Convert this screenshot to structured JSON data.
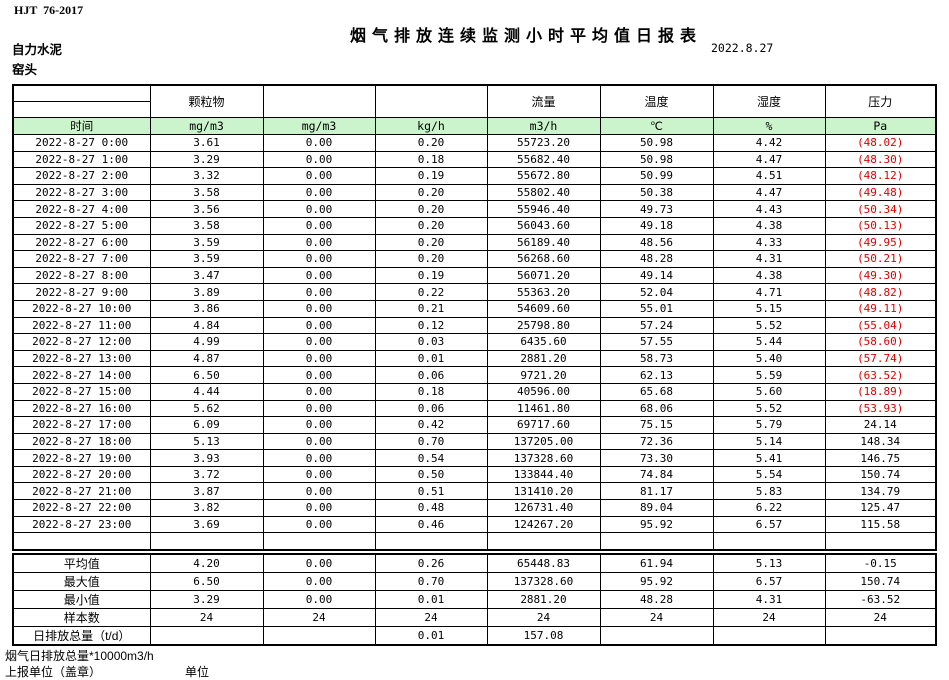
{
  "meta": {
    "standard": "HJT  76-2017",
    "title": "烟气排放连续监测小时平均值日报表",
    "date": "2022.8.27",
    "company": "自力水泥",
    "location": "窑头"
  },
  "colors": {
    "header_green": "#ccf4cc",
    "negative_red": "#e00000"
  },
  "table": {
    "groups": [
      "",
      "颗粒物",
      "",
      "",
      "流量",
      "温度",
      "湿度",
      "压力"
    ],
    "units": [
      "时间",
      "mg/m3",
      "mg/m3",
      "kg/h",
      "m3/h",
      "℃",
      "%",
      "Pa"
    ],
    "rows": [
      [
        "2022-8-27 0:00",
        "3.61",
        "0.00",
        "0.20",
        "55723.20",
        "50.98",
        "4.42",
        "(48.02)"
      ],
      [
        "2022-8-27 1:00",
        "3.29",
        "0.00",
        "0.18",
        "55682.40",
        "50.98",
        "4.47",
        "(48.30)"
      ],
      [
        "2022-8-27 2:00",
        "3.32",
        "0.00",
        "0.19",
        "55672.80",
        "50.99",
        "4.51",
        "(48.12)"
      ],
      [
        "2022-8-27 3:00",
        "3.58",
        "0.00",
        "0.20",
        "55802.40",
        "50.38",
        "4.47",
        "(49.48)"
      ],
      [
        "2022-8-27 4:00",
        "3.56",
        "0.00",
        "0.20",
        "55946.40",
        "49.73",
        "4.43",
        "(50.34)"
      ],
      [
        "2022-8-27 5:00",
        "3.58",
        "0.00",
        "0.20",
        "56043.60",
        "49.18",
        "4.38",
        "(50.13)"
      ],
      [
        "2022-8-27 6:00",
        "3.59",
        "0.00",
        "0.20",
        "56189.40",
        "48.56",
        "4.33",
        "(49.95)"
      ],
      [
        "2022-8-27 7:00",
        "3.59",
        "0.00",
        "0.20",
        "56268.60",
        "48.28",
        "4.31",
        "(50.21)"
      ],
      [
        "2022-8-27 8:00",
        "3.47",
        "0.00",
        "0.19",
        "56071.20",
        "49.14",
        "4.38",
        "(49.30)"
      ],
      [
        "2022-8-27 9:00",
        "3.89",
        "0.00",
        "0.22",
        "55363.20",
        "52.04",
        "4.71",
        "(48.82)"
      ],
      [
        "2022-8-27 10:00",
        "3.86",
        "0.00",
        "0.21",
        "54609.60",
        "55.01",
        "5.15",
        "(49.11)"
      ],
      [
        "2022-8-27 11:00",
        "4.84",
        "0.00",
        "0.12",
        "25798.80",
        "57.24",
        "5.52",
        "(55.04)"
      ],
      [
        "2022-8-27 12:00",
        "4.99",
        "0.00",
        "0.03",
        "6435.60",
        "57.55",
        "5.44",
        "(58.60)"
      ],
      [
        "2022-8-27 13:00",
        "4.87",
        "0.00",
        "0.01",
        "2881.20",
        "58.73",
        "5.40",
        "(57.74)"
      ],
      [
        "2022-8-27 14:00",
        "6.50",
        "0.00",
        "0.06",
        "9721.20",
        "62.13",
        "5.59",
        "(63.52)"
      ],
      [
        "2022-8-27 15:00",
        "4.44",
        "0.00",
        "0.18",
        "40596.00",
        "65.68",
        "5.60",
        "(18.89)"
      ],
      [
        "2022-8-27 16:00",
        "5.62",
        "0.00",
        "0.06",
        "11461.80",
        "68.06",
        "5.52",
        "(53.93)"
      ],
      [
        "2022-8-27 17:00",
        "6.09",
        "0.00",
        "0.42",
        "69717.60",
        "75.15",
        "5.79",
        "24.14"
      ],
      [
        "2022-8-27 18:00",
        "5.13",
        "0.00",
        "0.70",
        "137205.00",
        "72.36",
        "5.14",
        "148.34"
      ],
      [
        "2022-8-27 19:00",
        "3.93",
        "0.00",
        "0.54",
        "137328.60",
        "73.30",
        "5.41",
        "146.75"
      ],
      [
        "2022-8-27 20:00",
        "3.72",
        "0.00",
        "0.50",
        "133844.40",
        "74.84",
        "5.54",
        "150.74"
      ],
      [
        "2022-8-27 21:00",
        "3.87",
        "0.00",
        "0.51",
        "131410.20",
        "81.17",
        "5.83",
        "134.79"
      ],
      [
        "2022-8-27 22:00",
        "3.82",
        "0.00",
        "0.48",
        "126731.40",
        "89.04",
        "6.22",
        "125.47"
      ],
      [
        "2022-8-27 23:00",
        "3.69",
        "0.00",
        "0.46",
        "124267.20",
        "95.92",
        "6.57",
        "115.58"
      ]
    ],
    "summary": [
      [
        "平均值",
        "4.20",
        "0.00",
        "0.26",
        "65448.83",
        "61.94",
        "5.13",
        "-0.15"
      ],
      [
        "最大值",
        "6.50",
        "0.00",
        "0.70",
        "137328.60",
        "95.92",
        "6.57",
        "150.74"
      ],
      [
        "最小值",
        "3.29",
        "0.00",
        "0.01",
        "2881.20",
        "48.28",
        "4.31",
        "-63.52"
      ],
      [
        "样本数",
        "24",
        "24",
        "24",
        "24",
        "24",
        "24",
        "24"
      ],
      [
        "日排放总量（t/d）",
        "",
        "",
        "0.01",
        "157.08",
        "",
        "",
        ""
      ]
    ]
  },
  "footer": {
    "note": "烟气日排放总量*10000m3/h",
    "report_unit_label": "上报单位（盖章）",
    "unit_label": "单位"
  }
}
